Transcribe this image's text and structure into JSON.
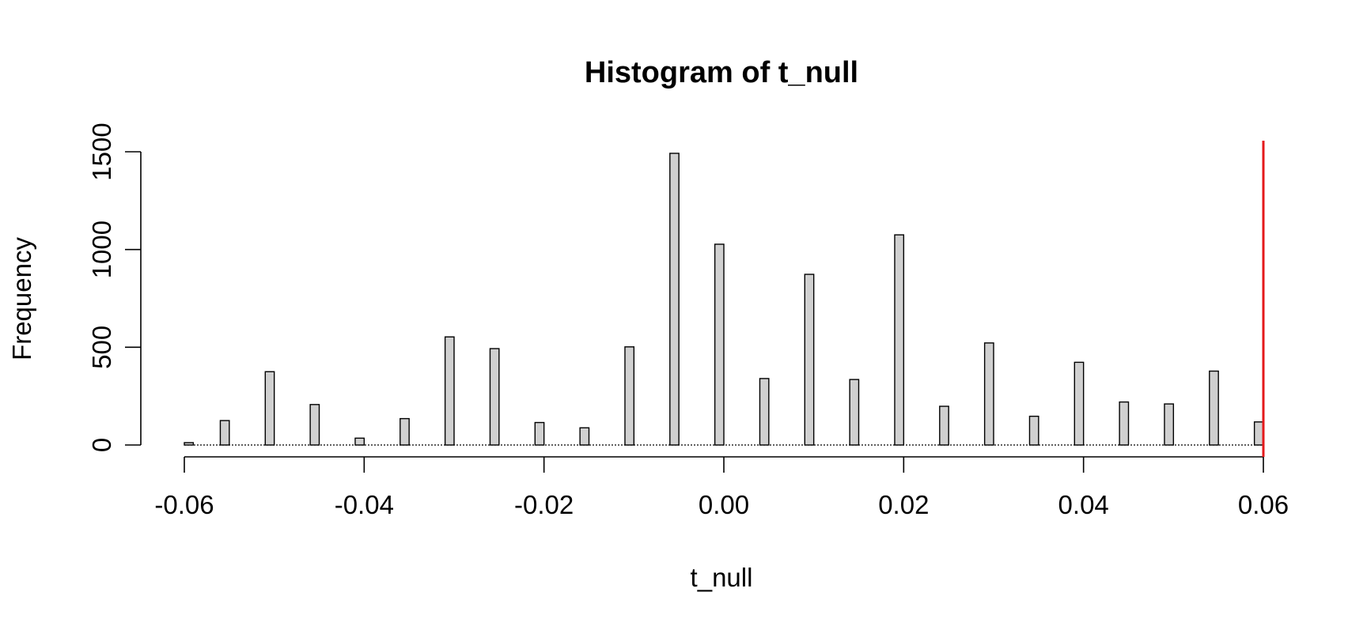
{
  "chart_data": {
    "type": "bar",
    "title": "Histogram of t_null",
    "xlabel": "t_null",
    "ylabel": "Frequency",
    "xlim": [
      -0.06,
      0.06
    ],
    "ylim": [
      0,
      1500
    ],
    "x_ticks": [
      -0.06,
      -0.04,
      -0.02,
      0.0,
      0.02,
      0.04,
      0.06
    ],
    "x_tick_labels": [
      "-0.06",
      "-0.04",
      "-0.02",
      "0.00",
      "0.02",
      "0.04",
      "0.06"
    ],
    "y_ticks": [
      0,
      500,
      1000,
      1500
    ],
    "y_tick_labels": [
      "0",
      "500",
      "1000",
      "1500"
    ],
    "bin_width": 0.001,
    "bars": [
      {
        "x0": -0.06,
        "x1": -0.059,
        "count": 12
      },
      {
        "x0": -0.056,
        "x1": -0.055,
        "count": 125
      },
      {
        "x0": -0.051,
        "x1": -0.05,
        "count": 375
      },
      {
        "x0": -0.046,
        "x1": -0.045,
        "count": 207
      },
      {
        "x0": -0.041,
        "x1": -0.04,
        "count": 35
      },
      {
        "x0": -0.036,
        "x1": -0.035,
        "count": 135
      },
      {
        "x0": -0.031,
        "x1": -0.03,
        "count": 553
      },
      {
        "x0": -0.026,
        "x1": -0.025,
        "count": 493
      },
      {
        "x0": -0.021,
        "x1": -0.02,
        "count": 115
      },
      {
        "x0": -0.016,
        "x1": -0.015,
        "count": 88
      },
      {
        "x0": -0.011,
        "x1": -0.01,
        "count": 502
      },
      {
        "x0": -0.006,
        "x1": -0.005,
        "count": 1492
      },
      {
        "x0": -0.001,
        "x1": 0.0,
        "count": 1027
      },
      {
        "x0": 0.004,
        "x1": 0.005,
        "count": 340
      },
      {
        "x0": 0.009,
        "x1": 0.01,
        "count": 873
      },
      {
        "x0": 0.014,
        "x1": 0.015,
        "count": 335
      },
      {
        "x0": 0.019,
        "x1": 0.02,
        "count": 1075
      },
      {
        "x0": 0.024,
        "x1": 0.025,
        "count": 198
      },
      {
        "x0": 0.029,
        "x1": 0.03,
        "count": 522
      },
      {
        "x0": 0.034,
        "x1": 0.035,
        "count": 147
      },
      {
        "x0": 0.039,
        "x1": 0.04,
        "count": 423
      },
      {
        "x0": 0.044,
        "x1": 0.045,
        "count": 220
      },
      {
        "x0": 0.049,
        "x1": 0.05,
        "count": 210
      },
      {
        "x0": 0.054,
        "x1": 0.055,
        "count": 378
      },
      {
        "x0": 0.059,
        "x1": 0.06,
        "count": 118
      }
    ],
    "reference_line": {
      "x": 0.06,
      "color": "#e41a1c"
    },
    "bar_fill": "#d0d0d0",
    "grid": false,
    "legend": "none"
  }
}
